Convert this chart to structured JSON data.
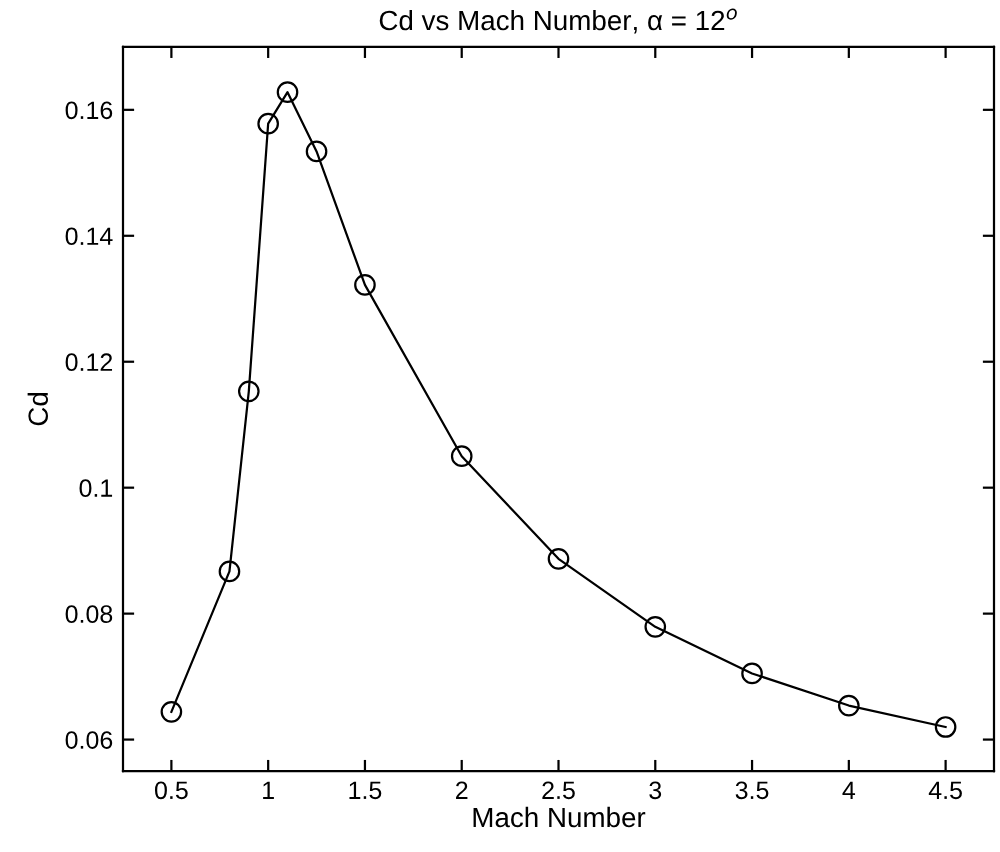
{
  "chart_data": {
    "type": "line",
    "title": "Cd vs Mach Number, α = 12$^{o}$",
    "xlabel": "Mach Number",
    "ylabel": "Cd",
    "x": [
      0.5,
      0.8,
      0.9,
      1.0,
      1.1,
      1.25,
      1.5,
      2.0,
      2.5,
      3.0,
      3.5,
      4.0,
      4.5
    ],
    "series": [
      {
        "color": "#000000",
        "values": [
          0.0644,
          0.0867,
          0.1153,
          0.1578,
          0.1628,
          0.1534,
          0.1322,
          0.105,
          0.0887,
          0.0779,
          0.0705,
          0.0654,
          0.062
        ]
      }
    ],
    "xlim": [
      0.25,
      4.75
    ],
    "ylim": [
      0.055,
      0.17
    ],
    "xticks": [
      0.5,
      1,
      1.5,
      2,
      2.5,
      3,
      3.5,
      4,
      4.5
    ],
    "yticks": [
      0.06,
      0.08,
      0.1,
      0.12,
      0.14,
      0.16
    ],
    "marker": "circle",
    "line_style": "solid",
    "grid": false,
    "legend": false
  }
}
